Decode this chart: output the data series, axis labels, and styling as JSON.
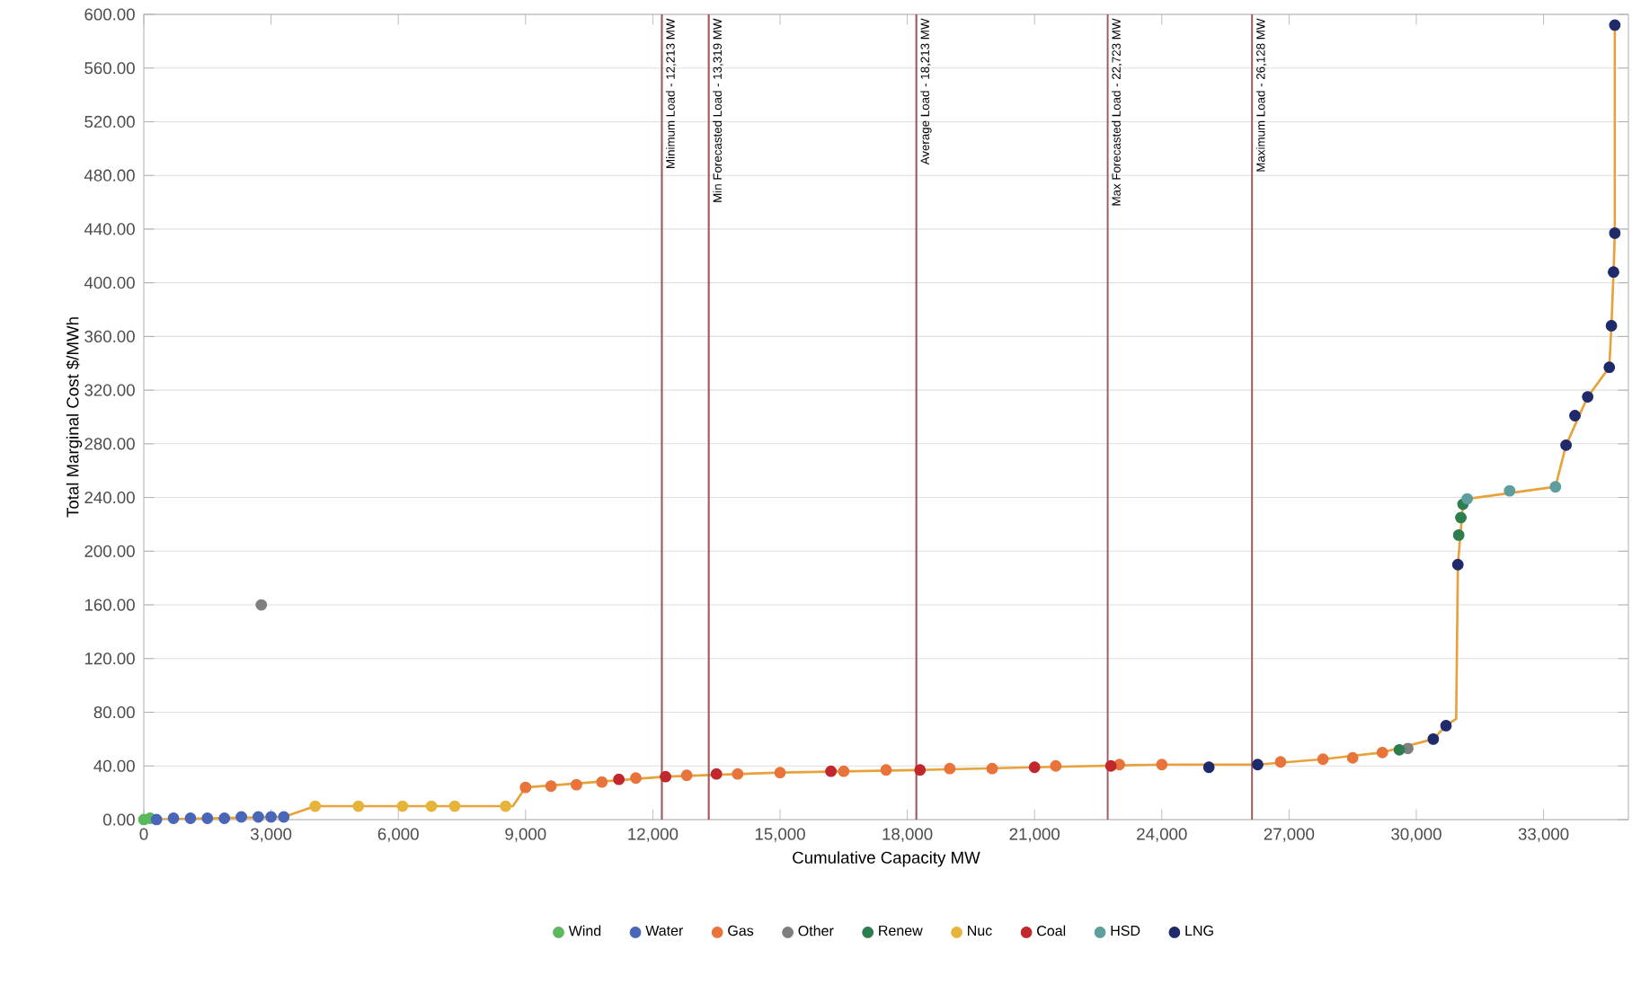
{
  "chart_data": {
    "type": "scatter",
    "xlabel": "Cumulative Capacity MW",
    "ylabel": "Total Marginal Cost $/MWh",
    "xlim": [
      0,
      35000
    ],
    "ylim": [
      0,
      600
    ],
    "xticks": [
      0,
      {
        "value": 3000,
        "label": "3,000"
      },
      {
        "value": 6000,
        "label": "6,000"
      },
      {
        "value": 9000,
        "label": "9,000"
      },
      {
        "value": 12000,
        "label": "12,000"
      },
      {
        "value": 15000,
        "label": "15,000"
      },
      {
        "value": 18000,
        "label": "18,000"
      },
      {
        "value": 21000,
        "label": "21,000"
      },
      {
        "value": 24000,
        "label": "24,000"
      },
      {
        "value": 27000,
        "label": "27,000"
      },
      {
        "value": 30000,
        "label": "30,000"
      },
      {
        "value": 33000,
        "label": "33,000"
      }
    ],
    "yticks": [
      {
        "value": 0,
        "label": "0.00"
      },
      {
        "value": 40,
        "label": "40.00"
      },
      {
        "value": 80,
        "label": "80.00"
      },
      {
        "value": 120,
        "label": "120.00"
      },
      {
        "value": 160,
        "label": "160.00"
      },
      {
        "value": 200,
        "label": "200.00"
      },
      {
        "value": 240,
        "label": "240.00"
      },
      {
        "value": 280,
        "label": "280.00"
      },
      {
        "value": 320,
        "label": "320.00"
      },
      {
        "value": 360,
        "label": "360.00"
      },
      {
        "value": 400,
        "label": "400.00"
      },
      {
        "value": 440,
        "label": "440.00"
      },
      {
        "value": 480,
        "label": "480.00"
      },
      {
        "value": 520,
        "label": "520.00"
      },
      {
        "value": 560,
        "label": "560.00"
      },
      {
        "value": 600,
        "label": "600.00"
      }
    ],
    "grid": "y",
    "legend": "bottom",
    "marker": "circle",
    "series": [
      {
        "type": "line",
        "marker": "none",
        "color": "#e8a23c",
        "x": [
          0,
          3300,
          4040,
          8530,
          8700,
          9000,
          12300,
          15000,
          18300,
          21000,
          24000,
          26260,
          27800,
          29200,
          30400,
          30700,
          30940,
          30980,
          31100,
          31200,
          33280,
          33530,
          34040,
          34550,
          34600,
          34650,
          34680,
          34680
        ],
        "values": [
          0,
          2,
          10,
          10,
          10,
          24,
          32,
          35,
          37,
          39,
          41,
          41,
          45,
          50,
          60,
          70,
          75,
          190,
          235,
          239,
          248,
          279,
          315,
          337,
          368,
          408,
          437,
          592
        ]
      },
      {
        "name": "Wind",
        "color": "#5cb85c",
        "x": [
          0,
          150
        ],
        "values": [
          0,
          1
        ]
      },
      {
        "name": "Water",
        "color": "#4a66b8",
        "x": [
          300,
          700,
          1100,
          1500,
          1900,
          2300,
          2700,
          3000,
          3300
        ],
        "values": [
          0,
          1,
          1,
          1,
          1,
          2,
          2,
          2,
          2
        ]
      },
      {
        "name": "Gas",
        "color": "#e8743b",
        "x": [
          9000,
          9600,
          10200,
          10800,
          11600,
          12800,
          14000,
          15000,
          16500,
          17500,
          19000,
          20000,
          21500,
          23000,
          24000,
          26800,
          27800,
          28500,
          29200
        ],
        "values": [
          24,
          25,
          26,
          28,
          31,
          33,
          34,
          35,
          36,
          37,
          38,
          38,
          40,
          41,
          41,
          43,
          45,
          46,
          50
        ]
      },
      {
        "name": "Other",
        "color": "#7f7f7f",
        "x": [
          2770,
          29800
        ],
        "values": [
          160,
          53
        ]
      },
      {
        "name": "Renew",
        "color": "#2e7d4f",
        "x": [
          29600,
          31000,
          31050,
          31100
        ],
        "values": [
          52,
          212,
          225,
          235
        ]
      },
      {
        "name": "Nuc",
        "color": "#e6b43a",
        "x": [
          4040,
          5060,
          6100,
          6780,
          7330,
          8530
        ],
        "values": [
          10,
          10,
          10,
          10,
          10,
          10
        ]
      },
      {
        "name": "Coal",
        "color": "#c0282d",
        "x": [
          11200,
          12300,
          13500,
          16200,
          18300,
          21000,
          22800
        ],
        "values": [
          30,
          32,
          34,
          36,
          37,
          39,
          40
        ]
      },
      {
        "name": "HSD",
        "color": "#5e9e9e",
        "x": [
          31200,
          32200,
          33280
        ],
        "values": [
          239,
          245,
          248
        ]
      },
      {
        "name": "LNG",
        "color": "#1f2a6b",
        "x": [
          25110,
          26260,
          30400,
          30700,
          30980,
          33530,
          33740,
          34040,
          34550,
          34600,
          34650,
          34680,
          34680
        ],
        "values": [
          39,
          41,
          60,
          70,
          190,
          279,
          301,
          315,
          337,
          368,
          408,
          437,
          592
        ]
      }
    ],
    "ref_lines": [
      {
        "axis": "x",
        "value": 12213,
        "label": "Minimum Load - 12,213 MW",
        "color": "#a05a5a"
      },
      {
        "axis": "x",
        "value": 13319,
        "label": "Min Forecasted Load - 13,319 MW",
        "color": "#a05a5a"
      },
      {
        "axis": "x",
        "value": 18213,
        "label": "Average Load - 18,213 MW",
        "color": "#a05a5a"
      },
      {
        "axis": "x",
        "value": 22723,
        "label": "Max Forecasted Load - 22,723 MW",
        "color": "#a05a5a"
      },
      {
        "axis": "x",
        "value": 26128,
        "label": "Maximum Load - 26,128 MW",
        "color": "#a05a5a"
      }
    ]
  }
}
